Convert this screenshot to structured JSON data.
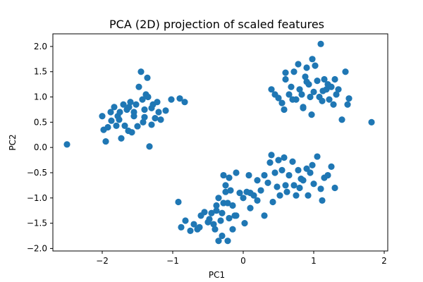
{
  "chart_data": {
    "type": "scatter",
    "title": "PCA (2D) projection of scaled features",
    "xlabel": "PC1",
    "ylabel": "PC2",
    "xlim": [
      -2.7,
      2.05
    ],
    "ylim": [
      -2.05,
      2.25
    ],
    "x_ticks": [
      -2,
      -1,
      0,
      1,
      2
    ],
    "y_ticks": [
      -2.0,
      -1.5,
      -1.0,
      -0.5,
      0.0,
      0.5,
      1.0,
      1.5,
      2.0
    ],
    "x_tick_labels": [
      "−2",
      "−1",
      "0",
      "1",
      "2"
    ],
    "y_tick_labels": [
      "−2.0",
      "−1.5",
      "−1.0",
      "−0.5",
      "0.0",
      "0.5",
      "1.0",
      "1.5",
      "2.0"
    ],
    "grid": false,
    "marker_color": "#1f77b4",
    "series": [
      {
        "x": [
          -2.5,
          -2.0,
          -1.98,
          -1.95,
          -1.92,
          -1.87,
          -1.83,
          -1.8,
          -1.78,
          -1.75,
          -1.73,
          -1.7,
          -1.68,
          -1.65,
          -1.63,
          -1.6,
          -1.58,
          -1.55,
          -1.52,
          -1.5,
          -1.48,
          -1.45,
          -1.43,
          -1.4,
          -1.38,
          -1.35,
          -1.33,
          -1.3,
          -1.28,
          -1.25,
          -1.22,
          -1.2,
          -1.17,
          -1.1,
          -1.02,
          -0.9,
          -0.83,
          -1.42,
          -1.36,
          -1.3,
          -1.88,
          -1.76,
          -1.62,
          -1.4,
          -1.55
        ],
        "y": [
          0.06,
          0.62,
          0.35,
          0.12,
          0.4,
          0.53,
          0.8,
          0.43,
          0.62,
          0.7,
          0.18,
          0.85,
          0.43,
          0.75,
          0.33,
          0.9,
          0.3,
          0.7,
          0.85,
          0.42,
          1.2,
          1.5,
          0.95,
          0.6,
          1.05,
          1.0,
          0.02,
          0.78,
          0.85,
          0.58,
          0.9,
          0.7,
          0.55,
          0.73,
          0.95,
          0.97,
          0.9,
          0.5,
          1.38,
          0.45,
          0.7,
          0.55,
          0.8,
          0.75,
          0.62
        ]
      },
      {
        "x": [
          0.4,
          0.45,
          0.5,
          0.55,
          0.58,
          0.6,
          0.65,
          0.68,
          0.72,
          0.75,
          0.78,
          0.8,
          0.83,
          0.85,
          0.88,
          0.9,
          0.93,
          0.95,
          0.98,
          1.0,
          1.02,
          1.05,
          1.08,
          1.1,
          1.12,
          1.15,
          1.18,
          1.2,
          1.22,
          1.25,
          1.28,
          1.3,
          1.35,
          1.4,
          1.45,
          1.48,
          1.5,
          1.82,
          0.6,
          0.7,
          0.9,
          0.97,
          1.32,
          0.85,
          1.13
        ],
        "y": [
          1.15,
          1.05,
          0.98,
          0.88,
          0.75,
          1.35,
          1.05,
          1.2,
          1.5,
          0.95,
          1.65,
          1.15,
          1.05,
          0.8,
          1.4,
          1.58,
          1.25,
          1.0,
          1.75,
          1.1,
          1.62,
          1.32,
          1.0,
          2.05,
          0.92,
          1.35,
          1.15,
          1.25,
          0.95,
          1.2,
          0.85,
          1.35,
          1.15,
          0.55,
          1.5,
          0.85,
          0.97,
          0.5,
          1.48,
          0.95,
          1.3,
          0.65,
          1.05,
          0.78,
          1.12
        ]
      },
      {
        "x": [
          -0.92,
          -0.88,
          -0.82,
          -0.75,
          -0.7,
          -0.65,
          -0.62,
          -0.55,
          -0.5,
          -0.45,
          -0.42,
          -0.4,
          -0.38,
          -0.35,
          -0.32,
          -0.3,
          -0.28,
          -0.25,
          -0.22,
          -0.2,
          -0.18,
          -0.15,
          -0.12,
          -0.1,
          -0.05,
          0.0,
          0.05,
          0.1,
          0.15,
          0.2,
          0.25,
          0.3,
          0.35,
          0.4,
          0.45,
          0.5,
          0.55,
          0.6,
          0.65,
          0.7,
          0.75,
          0.8,
          0.85,
          0.9,
          0.95,
          1.0,
          1.05,
          1.1,
          1.15,
          1.2,
          1.25,
          1.3,
          -0.35,
          -0.3,
          -0.25,
          -0.2,
          -0.15,
          -0.1,
          0.1,
          0.2,
          0.3,
          0.42,
          0.52,
          0.62,
          0.72,
          0.82,
          0.92,
          -0.6,
          -0.48,
          -0.28,
          0.08,
          0.38,
          0.58,
          0.78,
          0.98,
          1.12,
          -0.38,
          -0.22,
          0.02,
          0.48
        ],
        "y": [
          -1.08,
          -1.58,
          -1.45,
          -1.65,
          -1.52,
          -1.62,
          -1.58,
          -1.28,
          -1.48,
          -1.3,
          -1.52,
          -1.62,
          -1.15,
          -1.0,
          -1.45,
          -1.3,
          -0.55,
          -0.75,
          -1.1,
          -1.4,
          -0.85,
          -1.62,
          -1.35,
          -0.5,
          -0.9,
          -1.0,
          -0.88,
          -1.2,
          -0.95,
          -0.65,
          -0.85,
          -1.35,
          -0.7,
          -0.15,
          -0.5,
          -0.25,
          -0.45,
          -0.75,
          -0.55,
          -0.28,
          -0.95,
          -0.8,
          -0.65,
          -0.42,
          -0.5,
          -0.72,
          -0.18,
          -0.82,
          -0.6,
          -0.55,
          -0.38,
          -0.8,
          -1.85,
          -1.75,
          -0.88,
          -0.6,
          -1.15,
          -1.35,
          -0.9,
          -1.05,
          -0.55,
          -1.08,
          -0.95,
          -0.88,
          -0.75,
          -0.62,
          -0.95,
          -1.35,
          -1.42,
          -1.1,
          -0.55,
          -0.3,
          -0.2,
          -0.45,
          -0.35,
          -1.05,
          -1.25,
          -1.85,
          -1.5,
          -0.78
        ]
      }
    ]
  }
}
